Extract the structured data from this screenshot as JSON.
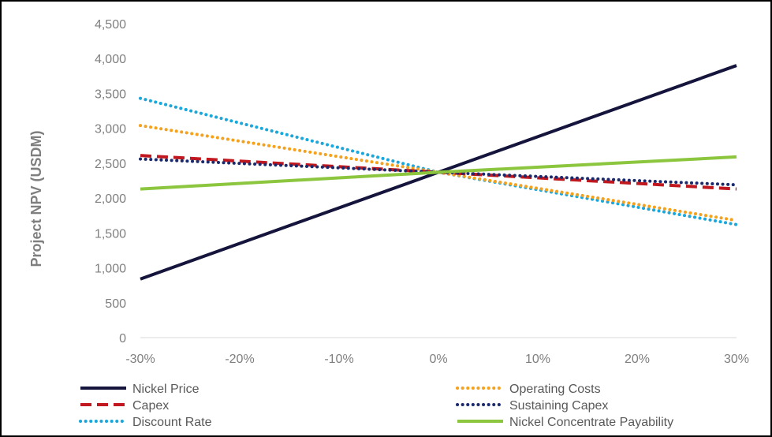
{
  "chart_data": {
    "type": "line",
    "title": "",
    "xlabel": "",
    "ylabel": "Project NPV (USDM)",
    "ylim": [
      0,
      4500
    ],
    "y_ticks": [
      0,
      500,
      1000,
      1500,
      2000,
      2500,
      3000,
      3500,
      4000,
      4500
    ],
    "y_tick_labels": [
      "0",
      "500",
      "1,000",
      "1,500",
      "2,000",
      "2,500",
      "3,000",
      "3,500",
      "4,000",
      "4,500"
    ],
    "x": [
      -30,
      30
    ],
    "x_ticks": [
      -30,
      -20,
      -10,
      0,
      10,
      20,
      30
    ],
    "x_tick_labels": [
      "-30%",
      "-20%",
      "-10%",
      "0%",
      "10%",
      "20%",
      "30%"
    ],
    "grid": false,
    "legend_position": "bottom",
    "series": [
      {
        "name": "Nickel Price",
        "x": [
          -30,
          0,
          30
        ],
        "values": [
          840,
          2370,
          3900
        ],
        "color": "#14143c",
        "style": "solid"
      },
      {
        "name": "Operating Costs",
        "x": [
          -30,
          0,
          30
        ],
        "values": [
          3040,
          2370,
          1680
        ],
        "color": "#f5a11c",
        "style": "dotted"
      },
      {
        "name": "Capex",
        "x": [
          -30,
          0,
          30
        ],
        "values": [
          2610,
          2370,
          2130
        ],
        "color": "#c0181e",
        "style": "dashed"
      },
      {
        "name": "Sustaining Capex",
        "x": [
          -30,
          0,
          30
        ],
        "values": [
          2560,
          2370,
          2190
        ],
        "color": "#1a2a6c",
        "style": "dotted"
      },
      {
        "name": "Discount Rate",
        "x": [
          -30,
          0,
          30
        ],
        "values": [
          3430,
          2370,
          1620
        ],
        "color": "#1aa7dc",
        "style": "dotted"
      },
      {
        "name": "Nickel Concentrate Payability",
        "x": [
          -30,
          0,
          30
        ],
        "values": [
          2130,
          2370,
          2590
        ],
        "color": "#8cc63f",
        "style": "solid"
      }
    ]
  }
}
